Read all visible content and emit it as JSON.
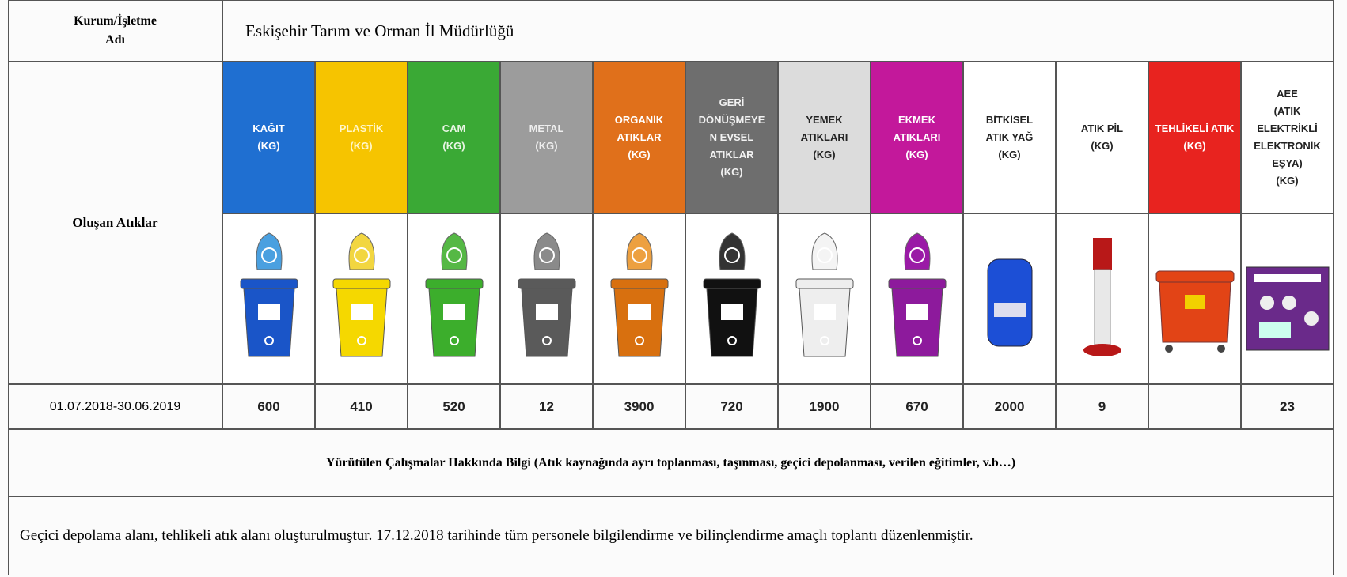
{
  "header": {
    "label": "Kurum/İşletme\nAdı",
    "name": "Eskişehir Tarım ve Orman İl Müdürlüğü"
  },
  "table": {
    "row_label": "Oluşan Atıklar",
    "period": "01.07.2018-30.06.2019",
    "columns": [
      {
        "label": "KAĞIT\n(KG)",
        "color": "#1f6fd1",
        "text_color": "#ffffff",
        "value": 600
      },
      {
        "label": "PLASTİK\n(KG)",
        "color": "#f6c400",
        "text_color": "#fff6c8",
        "value": 410
      },
      {
        "label": "CAM\n(KG)",
        "color": "#3aa935",
        "text_color": "#e8f5e4",
        "value": 520
      },
      {
        "label": "METAL\n(KG)",
        "color": "#9c9c9c",
        "text_color": "#eeeeee",
        "value": 12
      },
      {
        "label": "ORGANİK\nATIKLAR\n(KG)",
        "color": "#e0701b",
        "text_color": "#ffffff",
        "value": 3900
      },
      {
        "label": "GERİ\nDÖNÜŞMEYE\nN EVSEL\nATIKLAR\n(KG)",
        "color": "#6e6e6e",
        "text_color": "#f2f2f2",
        "value": 720
      },
      {
        "label": "YEMEK\nATIKLARI\n(KG)",
        "color": "#dcdcdc",
        "text_color": "#222222",
        "value": 1900
      },
      {
        "label": "EKMEK\nATIKLARI\n(KG)",
        "color": "#c3189b",
        "text_color": "#ffffff",
        "value": 670
      },
      {
        "label": "BİTKİSEL\nATIK YAĞ\n(KG)",
        "color": "#ffffff",
        "text_color": "#222222",
        "value": 2000
      },
      {
        "label": "ATIK PİL\n(KG)",
        "color": "#ffffff",
        "text_color": "#222222",
        "value": 9
      },
      {
        "label": "TEHLİKELİ ATIK\n(KG)",
        "color": "#e8231f",
        "text_color": "#ffffff",
        "value": null
      },
      {
        "label": "AEE\n(ATIK\nELEKTRİKLİ\nELEKTRONİK\nEŞYA)\n(KG)",
        "color": "#ffffff",
        "text_color": "#222222",
        "value": 23
      }
    ]
  },
  "info": {
    "title": "Yürütülen Çalışmalar Hakkında Bilgi (Atık kaynağında ayrı toplanması, taşınması, geçici depolanması, verilen eğitimler, v.b…)",
    "text": "Geçici depolama alanı, tehlikeli atık alanı oluşturulmuştur. 17.12.2018 tarihinde tüm personele bilgilendirme ve bilinçlendirme amaçlı toplantı düzenlenmiştir."
  }
}
